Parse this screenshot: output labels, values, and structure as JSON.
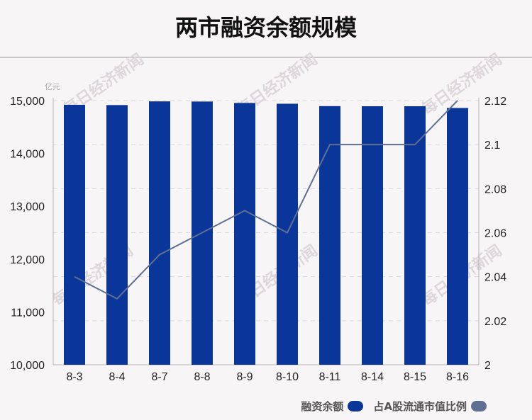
{
  "page": {
    "title": "两市融资余额规模"
  },
  "colors": {
    "bar": "#0a3599",
    "line": "#5f6f94",
    "axis": "#b3b3b3",
    "grid": "#d9d9d9",
    "watermark": "#ddd6da"
  },
  "watermark": {
    "text": "每日经济新闻"
  },
  "chart_data": {
    "type": "bar",
    "categories": [
      "8-3",
      "8-4",
      "8-7",
      "8-8",
      "8-9",
      "8-10",
      "8-11",
      "8-14",
      "8-15",
      "8-16"
    ],
    "series": [
      {
        "name": "融资余额",
        "type": "bar",
        "axis": "left",
        "values": [
          14920,
          14915,
          14985,
          14982,
          14955,
          14940,
          14895,
          14893,
          14893,
          14860
        ]
      },
      {
        "name": "占A股流通市值比例",
        "type": "line",
        "axis": "right",
        "values": [
          2.04,
          2.03,
          2.05,
          2.06,
          2.07,
          2.06,
          2.1,
          2.1,
          2.1,
          2.12
        ]
      }
    ],
    "y_left": {
      "unit": "亿元",
      "ylim": [
        10000,
        15000
      ],
      "ticks": [
        "10,000",
        "11,000",
        "12,000",
        "13,000",
        "14,000",
        "15,000"
      ]
    },
    "y_right": {
      "ylim": [
        2,
        2.12
      ],
      "ticks": [
        "2",
        "2.02",
        "2.04",
        "2.06",
        "2.08",
        "2.1",
        "2.12"
      ]
    },
    "grid": true,
    "legend_position": "bottom-right"
  }
}
